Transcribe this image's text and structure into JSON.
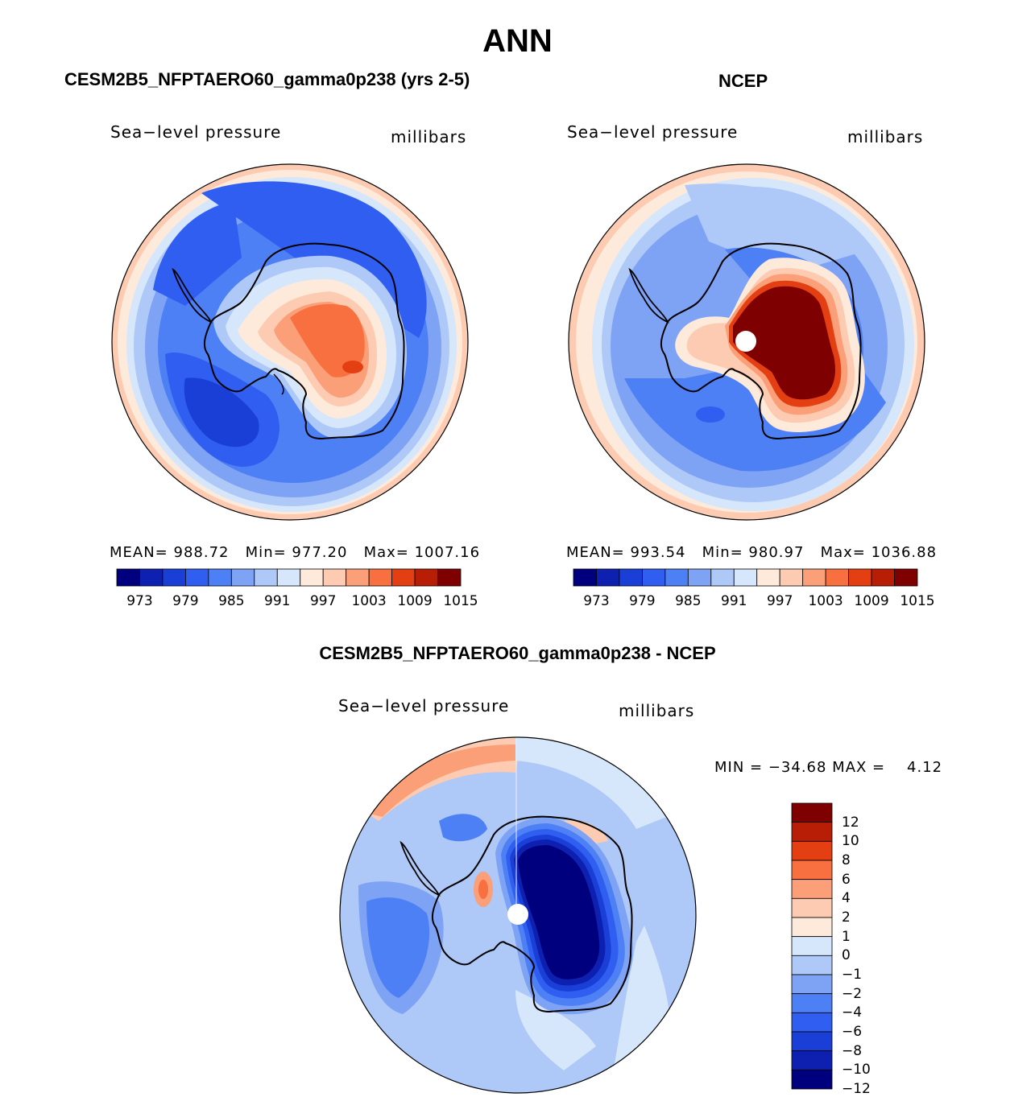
{
  "title": "ANN",
  "colors": {
    "abs_scale": [
      "#00007f",
      "#0d20b0",
      "#1a3fd7",
      "#2f5ef0",
      "#4e80f5",
      "#7ea3f5",
      "#aec8f7",
      "#d6e6fb",
      "#feeadb",
      "#fdcbb1",
      "#fa9f78",
      "#f8703f",
      "#e33f12",
      "#b71e05",
      "#7f0000"
    ],
    "diff_scale": [
      "#00007f",
      "#0d20b0",
      "#1a3fd7",
      "#2f5ef0",
      "#4e80f5",
      "#7ea3f5",
      "#aec8f7",
      "#d6e6fb",
      "#feeadb",
      "#fdcbb1",
      "#fa9f78",
      "#f8703f",
      "#e33f12",
      "#b71e05",
      "#7f0000"
    ]
  },
  "panels": {
    "model": {
      "title": "CESM2B5_NFPTAERO60_gamma0p238 (yrs 2-5)",
      "variable": "Sea−level pressure",
      "units": "millibars",
      "stats": {
        "mean_label": "MEAN=",
        "mean": "988.72",
        "min_label": "Min=",
        "min": "977.20",
        "max_label": "Max=",
        "max": "1007.16"
      },
      "ticks": [
        "973",
        "979",
        "985",
        "991",
        "997",
        "1003",
        "1009",
        "1015"
      ]
    },
    "obs": {
      "title": "NCEP",
      "variable": "Sea−level pressure",
      "units": "millibars",
      "stats": {
        "mean_label": "MEAN=",
        "mean": "993.54",
        "min_label": "Min=",
        "min": "980.97",
        "max_label": "Max=",
        "max": "1036.88"
      },
      "ticks": [
        "973",
        "979",
        "985",
        "991",
        "997",
        "1003",
        "1009",
        "1015"
      ]
    },
    "diff": {
      "title": "CESM2B5_NFPTAERO60_gamma0p238 - NCEP",
      "variable": "Sea−level pressure",
      "units": "millibars",
      "minmax": "MIN = −34.68 MAX =    4.12",
      "ticks": [
        "12",
        "10",
        "8",
        "6",
        "4",
        "2",
        "1",
        "0",
        "−1",
        "−2",
        "−4",
        "−6",
        "−8",
        "−10",
        "−12"
      ]
    }
  }
}
